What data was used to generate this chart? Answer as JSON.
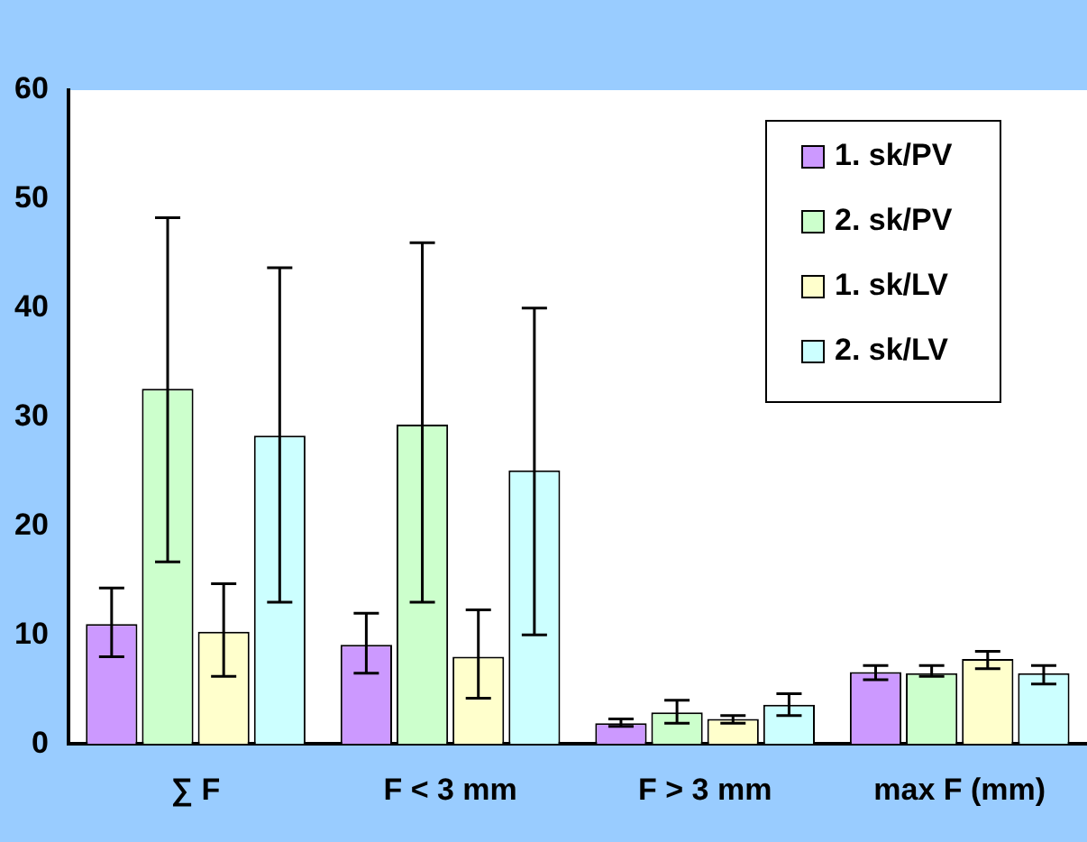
{
  "chart_data": {
    "type": "bar",
    "categories": [
      "∑ F",
      "F < 3 mm",
      "F > 3 mm",
      "max F (mm)"
    ],
    "series": [
      {
        "name": "1. sk/PV",
        "color": "#cc99ff",
        "values": [
          11,
          9.1,
          1.9,
          6.6
        ],
        "errors": [
          [
            8,
            14.3
          ],
          [
            6.5,
            12
          ],
          [
            1.6,
            2.3
          ],
          [
            5.9,
            7.2
          ]
        ]
      },
      {
        "name": "2. sk/PV",
        "color": "#ccffcc",
        "values": [
          32.6,
          29.3,
          2.9,
          6.5
        ],
        "errors": [
          [
            16.7,
            48.3
          ],
          [
            13,
            46
          ],
          [
            1.9,
            4
          ],
          [
            6.2,
            7.2
          ]
        ]
      },
      {
        "name": "1. sk/LV",
        "color": "#ffffcc",
        "values": [
          10.3,
          8,
          2.3,
          7.8
        ],
        "errors": [
          [
            6.2,
            14.7
          ],
          [
            4.2,
            12.3
          ],
          [
            1.9,
            2.6
          ],
          [
            6.9,
            8.5
          ]
        ]
      },
      {
        "name": "2. sk/LV",
        "color": "#ccffff",
        "values": [
          28.3,
          25.1,
          3.6,
          6.5
        ],
        "errors": [
          [
            13,
            43.7
          ],
          [
            10,
            40
          ],
          [
            2.6,
            4.6
          ],
          [
            5.5,
            7.2
          ]
        ]
      }
    ],
    "ylim": [
      0,
      60
    ],
    "yticks": [
      0,
      10,
      20,
      30,
      40,
      50,
      60
    ],
    "grid": false,
    "legend": "top right"
  }
}
